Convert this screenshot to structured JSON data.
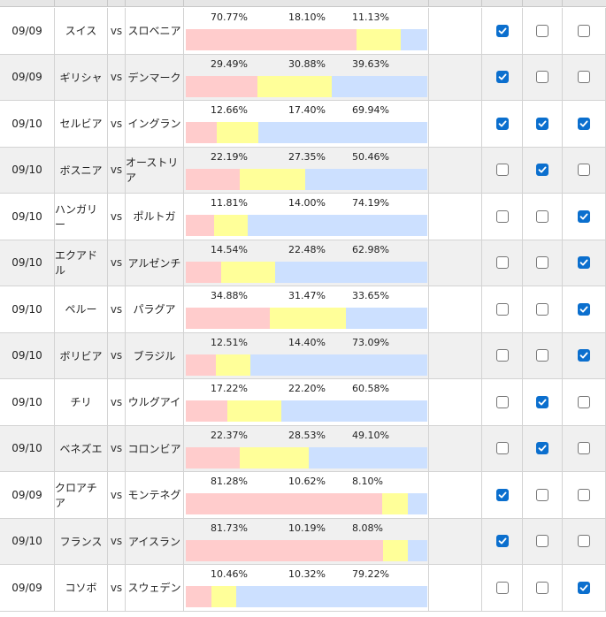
{
  "vs_label": "vs",
  "colors": {
    "home_bar": "#ffcccc",
    "draw_bar": "#ffff99",
    "away_bar": "#cce0ff",
    "checkbox_on": "#0b6fce"
  },
  "matches": [
    {
      "date": "09/09",
      "home": "スイス",
      "away": "スロベニア",
      "p_home": "70.77%",
      "p_draw": "18.10%",
      "p_away": "11.13%",
      "h": 70.77,
      "d": 18.1,
      "a": 11.13,
      "picks": [
        true,
        false,
        false
      ]
    },
    {
      "date": "09/09",
      "home": "ギリシャ",
      "away": "デンマーク",
      "p_home": "29.49%",
      "p_draw": "30.88%",
      "p_away": "39.63%",
      "h": 29.49,
      "d": 30.88,
      "a": 39.63,
      "picks": [
        true,
        false,
        false
      ]
    },
    {
      "date": "09/10",
      "home": "セルビア",
      "away": "イングラン",
      "p_home": "12.66%",
      "p_draw": "17.40%",
      "p_away": "69.94%",
      "h": 12.66,
      "d": 17.4,
      "a": 69.94,
      "picks": [
        true,
        true,
        true
      ]
    },
    {
      "date": "09/10",
      "home": "ボスニア",
      "away": "オーストリア",
      "p_home": "22.19%",
      "p_draw": "27.35%",
      "p_away": "50.46%",
      "h": 22.19,
      "d": 27.35,
      "a": 50.46,
      "picks": [
        false,
        true,
        false
      ]
    },
    {
      "date": "09/10",
      "home": "ハンガリー",
      "away": "ポルトガ",
      "p_home": "11.81%",
      "p_draw": "14.00%",
      "p_away": "74.19%",
      "h": 11.81,
      "d": 14.0,
      "a": 74.19,
      "picks": [
        false,
        false,
        true
      ]
    },
    {
      "date": "09/10",
      "home": "エクアドル",
      "away": "アルゼンチ",
      "p_home": "14.54%",
      "p_draw": "22.48%",
      "p_away": "62.98%",
      "h": 14.54,
      "d": 22.48,
      "a": 62.98,
      "picks": [
        false,
        false,
        true
      ]
    },
    {
      "date": "09/10",
      "home": "ペルー",
      "away": "パラグア",
      "p_home": "34.88%",
      "p_draw": "31.47%",
      "p_away": "33.65%",
      "h": 34.88,
      "d": 31.47,
      "a": 33.65,
      "picks": [
        false,
        false,
        true
      ]
    },
    {
      "date": "09/10",
      "home": "ボリビア",
      "away": "ブラジル",
      "p_home": "12.51%",
      "p_draw": "14.40%",
      "p_away": "73.09%",
      "h": 12.51,
      "d": 14.4,
      "a": 73.09,
      "picks": [
        false,
        false,
        true
      ]
    },
    {
      "date": "09/10",
      "home": "チリ",
      "away": "ウルグアイ",
      "p_home": "17.22%",
      "p_draw": "22.20%",
      "p_away": "60.58%",
      "h": 17.22,
      "d": 22.2,
      "a": 60.58,
      "picks": [
        false,
        true,
        false
      ]
    },
    {
      "date": "09/10",
      "home": "ベネズエ",
      "away": "コロンビア",
      "p_home": "22.37%",
      "p_draw": "28.53%",
      "p_away": "49.10%",
      "h": 22.37,
      "d": 28.53,
      "a": 49.1,
      "picks": [
        false,
        true,
        false
      ]
    },
    {
      "date": "09/09",
      "home": "クロアチア",
      "away": "モンテネグ",
      "p_home": "81.28%",
      "p_draw": "10.62%",
      "p_away": "8.10%",
      "h": 81.28,
      "d": 10.62,
      "a": 8.1,
      "picks": [
        true,
        false,
        false
      ]
    },
    {
      "date": "09/10",
      "home": "フランス",
      "away": "アイスラン",
      "p_home": "81.73%",
      "p_draw": "10.19%",
      "p_away": "8.08%",
      "h": 81.73,
      "d": 10.19,
      "a": 8.08,
      "picks": [
        true,
        false,
        false
      ]
    },
    {
      "date": "09/09",
      "home": "コソボ",
      "away": "スウェデン",
      "p_home": "10.46%",
      "p_draw": "10.32%",
      "p_away": "79.22%",
      "h": 10.46,
      "d": 10.32,
      "a": 79.22,
      "picks": [
        false,
        false,
        true
      ]
    }
  ]
}
